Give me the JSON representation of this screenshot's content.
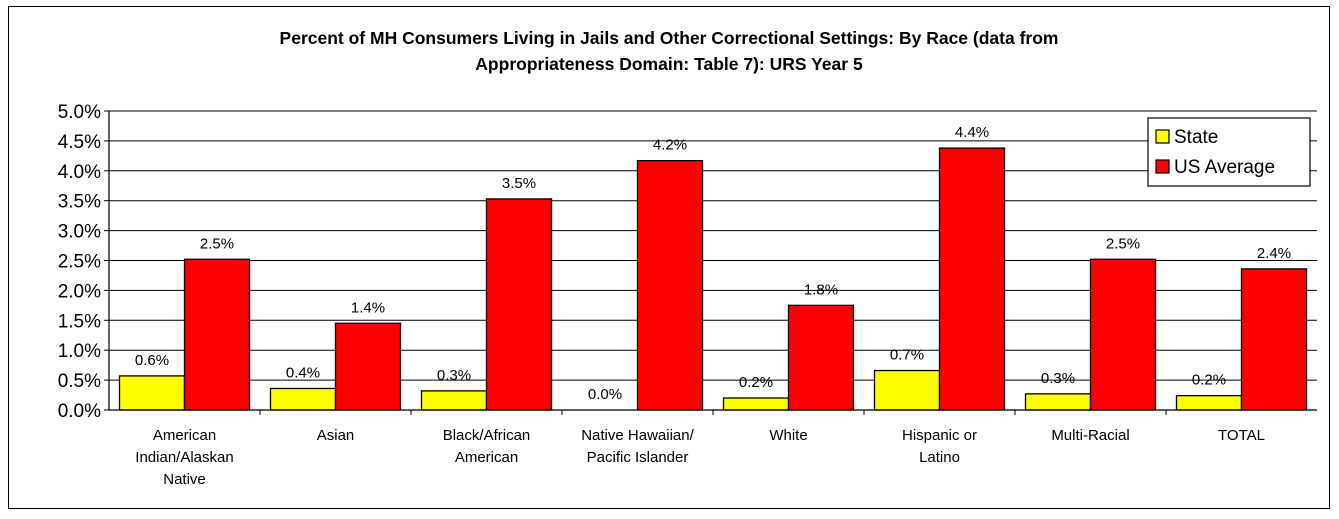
{
  "chart_data": {
    "type": "bar",
    "title": "Percent of MH Consumers Living in Jails and Other Correctional Settings: By Race (data from\nAppropriateness Domain: Table 7): URS Year 5",
    "categories": [
      [
        "American",
        "Indian/Alaskan",
        "Native"
      ],
      [
        "Asian"
      ],
      [
        "Black/African",
        "American"
      ],
      [
        "Native Hawaiian/",
        "Pacific Islander"
      ],
      [
        "White"
      ],
      [
        "Hispanic or",
        "Latino"
      ],
      [
        "Multi-Racial"
      ],
      [
        "TOTAL"
      ]
    ],
    "series": [
      {
        "name": "State",
        "color": "#FFFF00",
        "values": [
          0.57,
          0.36,
          0.32,
          0.0,
          0.2,
          0.66,
          0.27,
          0.24
        ],
        "labels": [
          "0.6%",
          "0.4%",
          "0.3%",
          "0.0%",
          "0.2%",
          "0.7%",
          "0.3%",
          "0.2%"
        ]
      },
      {
        "name": "US Average",
        "color": "#FF0000",
        "values": [
          2.52,
          1.45,
          3.53,
          4.17,
          1.75,
          4.38,
          2.52,
          2.36
        ],
        "labels": [
          "2.5%",
          "1.4%",
          "3.5%",
          "4.2%",
          "1.8%",
          "4.4%",
          "2.5%",
          "2.4%"
        ]
      }
    ],
    "ylim": [
      0,
      5
    ],
    "yticks": [
      "0.0%",
      "0.5%",
      "1.0%",
      "1.5%",
      "2.0%",
      "2.5%",
      "3.0%",
      "3.5%",
      "4.0%",
      "4.5%",
      "5.0%"
    ],
    "xlabel": "",
    "ylabel": "",
    "grid": true,
    "legend_position": "top-right"
  }
}
